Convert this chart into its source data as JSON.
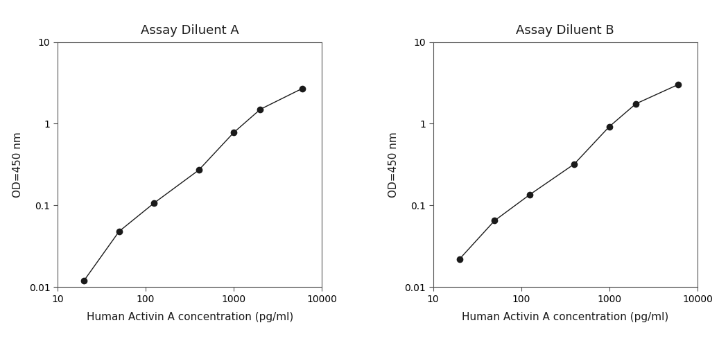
{
  "chart_A": {
    "title": "Assay Diluent A",
    "x": [
      20,
      50,
      125,
      400,
      1000,
      2000,
      6000
    ],
    "y": [
      0.012,
      0.048,
      0.107,
      0.27,
      0.78,
      1.5,
      2.7
    ]
  },
  "chart_B": {
    "title": "Assay Diluent B",
    "x": [
      20,
      50,
      125,
      400,
      1000,
      2000,
      6000
    ],
    "y": [
      0.022,
      0.065,
      0.135,
      0.32,
      0.92,
      1.75,
      3.0
    ]
  },
  "xlabel": "Human Activin A concentration (pg/ml)",
  "ylabel": "OD=450 nm",
  "xlim": [
    10,
    10000
  ],
  "ylim": [
    0.01,
    10
  ],
  "line_color": "#1a1a1a",
  "marker_color": "#1a1a1a",
  "marker_size": 6,
  "line_width": 1.0,
  "title_fontsize": 13,
  "label_fontsize": 11,
  "tick_fontsize": 10,
  "background_color": "#ffffff",
  "xticks": [
    10,
    100,
    1000,
    10000
  ],
  "xticklabels": [
    "10",
    "100",
    "1000",
    "10000"
  ],
  "yticks": [
    0.01,
    0.1,
    1,
    10
  ],
  "yticklabels": [
    "0.01",
    "0.1",
    "1",
    "10"
  ]
}
